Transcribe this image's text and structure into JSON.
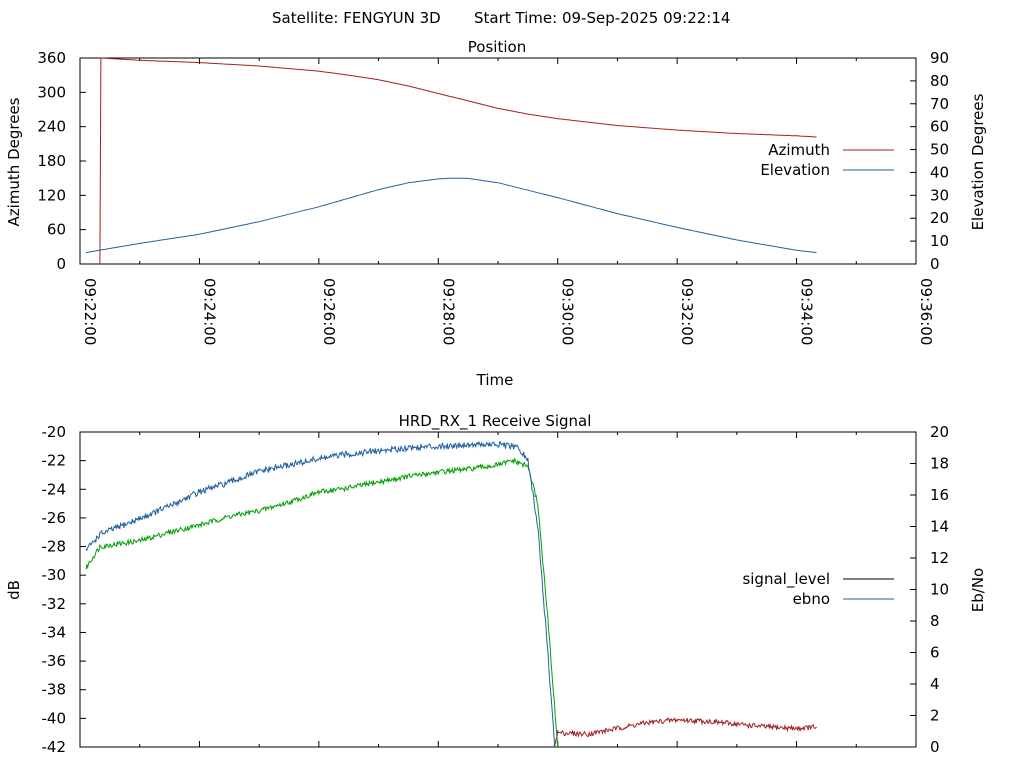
{
  "header": {
    "satellite": "Satellite: FENGYUN 3D",
    "start_time": "Start Time: 09-Sep-2025 09:22:14"
  },
  "chart_data": [
    {
      "type": "line",
      "title": "Position",
      "xlabel": "Time",
      "ylabel": "Azimuth Degrees",
      "y2label": "Elevation Degrees",
      "xlim": [
        "09:22:00",
        "09:36:00"
      ],
      "ylim": [
        0,
        360
      ],
      "y2lim": [
        0,
        90
      ],
      "x_ticks": [
        "09:22:00",
        "09:24:00",
        "09:26:00",
        "09:28:00",
        "09:30:00",
        "09:32:00",
        "09:34:00",
        "09:36:00"
      ],
      "y_ticks": [
        "0",
        "60",
        "120",
        "180",
        "240",
        "300",
        "360"
      ],
      "y2_ticks": [
        "0",
        "10",
        "20",
        "30",
        "40",
        "50",
        "60",
        "70",
        "80",
        "90"
      ],
      "legend_position": "right",
      "series": [
        {
          "name": "Azimuth",
          "axis": "y",
          "color": "#a02020",
          "points": [
            [
              "09:22:20",
              0
            ],
            [
              "09:22:21",
              360
            ],
            [
              "09:23:00",
              356
            ],
            [
              "09:24:00",
              352
            ],
            [
              "09:25:00",
              346
            ],
            [
              "09:26:00",
              337
            ],
            [
              "09:26:30",
              330
            ],
            [
              "09:27:00",
              322
            ],
            [
              "09:27:30",
              311
            ],
            [
              "09:28:00",
              298
            ],
            [
              "09:28:30",
              285
            ],
            [
              "09:29:00",
              272
            ],
            [
              "09:29:30",
              262
            ],
            [
              "09:30:00",
              254
            ],
            [
              "09:30:30",
              248
            ],
            [
              "09:31:00",
              242
            ],
            [
              "09:31:30",
              238
            ],
            [
              "09:32:00",
              234
            ],
            [
              "09:32:30",
              231
            ],
            [
              "09:33:00",
              228
            ],
            [
              "09:33:30",
              226
            ],
            [
              "09:34:00",
              224
            ],
            [
              "09:34:20",
              222
            ]
          ]
        },
        {
          "name": "Elevation",
          "axis": "y2",
          "color": "#2060a0",
          "points": [
            [
              "09:22:06",
              5
            ],
            [
              "09:23:00",
              9
            ],
            [
              "09:24:00",
              13
            ],
            [
              "09:25:00",
              18.5
            ],
            [
              "09:26:00",
              25
            ],
            [
              "09:27:00",
              32.5
            ],
            [
              "09:27:30",
              35.5
            ],
            [
              "09:28:00",
              37.2
            ],
            [
              "09:28:15",
              37.5
            ],
            [
              "09:28:30",
              37.4
            ],
            [
              "09:29:00",
              35.5
            ],
            [
              "09:30:00",
              29
            ],
            [
              "09:31:00",
              22
            ],
            [
              "09:32:00",
              16
            ],
            [
              "09:33:00",
              10.5
            ],
            [
              "09:34:00",
              6
            ],
            [
              "09:34:20",
              5
            ]
          ]
        }
      ]
    },
    {
      "type": "line",
      "title": "HRD_RX_1 Receive Signal",
      "xlabel": "",
      "ylabel": "dB",
      "y2label": "Eb/No",
      "xlim": [
        "09:22:00",
        "09:36:00"
      ],
      "ylim": [
        -42,
        -20
      ],
      "y2lim": [
        0,
        20
      ],
      "y_ticks": [
        "-42",
        "-40",
        "-38",
        "-36",
        "-34",
        "-32",
        "-30",
        "-28",
        "-26",
        "-24",
        "-22",
        "-20"
      ],
      "y2_ticks": [
        "0",
        "2",
        "4",
        "6",
        "8",
        "10",
        "12",
        "14",
        "16",
        "18",
        "20"
      ],
      "legend_position": "right",
      "series": [
        {
          "name": "signal_level",
          "axis": "y",
          "color": "#000000",
          "segments": [
            {
              "color": "#00a000",
              "points": [
                [
                  "09:22:06",
                  -29.5
                ],
                [
                  "09:22:20",
                  -28.0
                ],
                [
                  "09:23:00",
                  -27.6
                ],
                [
                  "09:23:30",
                  -27.0
                ],
                [
                  "09:24:00",
                  -26.5
                ],
                [
                  "09:24:30",
                  -25.9
                ],
                [
                  "09:25:00",
                  -25.5
                ],
                [
                  "09:25:30",
                  -24.9
                ],
                [
                  "09:26:00",
                  -24.2
                ],
                [
                  "09:26:30",
                  -23.9
                ],
                [
                  "09:27:00",
                  -23.5
                ],
                [
                  "09:27:30",
                  -23.1
                ],
                [
                  "09:28:00",
                  -22.8
                ],
                [
                  "09:28:30",
                  -22.6
                ],
                [
                  "09:29:00",
                  -22.3
                ],
                [
                  "09:29:15",
                  -22.0
                ],
                [
                  "09:29:30",
                  -22.4
                ],
                [
                  "09:29:40",
                  -25.0
                ],
                [
                  "09:29:50",
                  -33.0
                ],
                [
                  "09:30:00",
                  -42.0
                ]
              ]
            },
            {
              "color": "#a02020",
              "points": [
                [
                  "09:29:56",
                  -42.0
                ],
                [
                  "09:30:00",
                  -41.0
                ],
                [
                  "09:30:30",
                  -41.1
                ],
                [
                  "09:31:00",
                  -40.7
                ],
                [
                  "09:31:30",
                  -40.3
                ],
                [
                  "09:32:00",
                  -40.1
                ],
                [
                  "09:32:30",
                  -40.2
                ],
                [
                  "09:33:00",
                  -40.4
                ],
                [
                  "09:33:30",
                  -40.6
                ],
                [
                  "09:34:00",
                  -40.7
                ],
                [
                  "09:34:20",
                  -40.6
                ]
              ]
            }
          ]
        },
        {
          "name": "ebno",
          "axis": "y2",
          "color": "#2060a0",
          "points": [
            [
              "09:22:06",
              12.5
            ],
            [
              "09:22:20",
              13.5
            ],
            [
              "09:23:00",
              14.5
            ],
            [
              "09:23:30",
              15.3
            ],
            [
              "09:24:00",
              16.2
            ],
            [
              "09:24:30",
              16.8
            ],
            [
              "09:25:00",
              17.5
            ],
            [
              "09:25:30",
              17.9
            ],
            [
              "09:26:00",
              18.3
            ],
            [
              "09:26:30",
              18.6
            ],
            [
              "09:27:00",
              18.8
            ],
            [
              "09:27:30",
              19.0
            ],
            [
              "09:28:00",
              19.1
            ],
            [
              "09:28:30",
              19.2
            ],
            [
              "09:29:00",
              19.2
            ],
            [
              "09:29:20",
              19.0
            ],
            [
              "09:29:30",
              18.2
            ],
            [
              "09:29:40",
              14.0
            ],
            [
              "09:29:50",
              6.0
            ],
            [
              "09:29:57",
              0.0
            ]
          ]
        }
      ]
    }
  ]
}
